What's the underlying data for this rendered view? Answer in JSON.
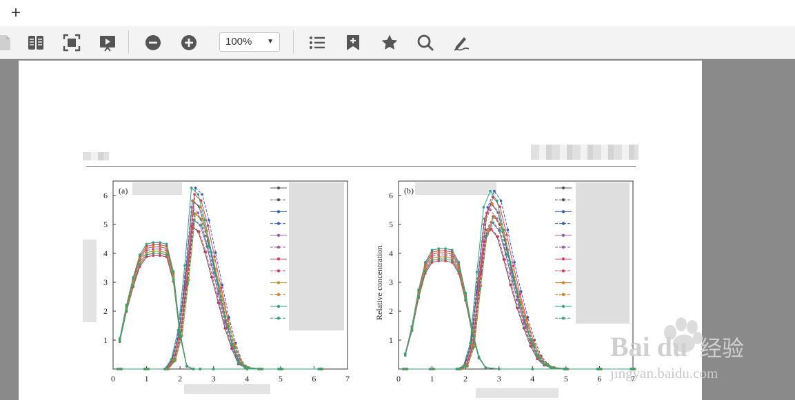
{
  "toolbar": {
    "zoom_value": "100%",
    "icons": [
      "new-tab-icon",
      "document-icon",
      "two-page-icon",
      "fit-page-icon",
      "presentation-icon",
      "zoom-out-icon",
      "zoom-in-icon",
      "outline-icon",
      "bookmark-add-icon",
      "favorite-icon",
      "search-icon",
      "annotate-icon"
    ]
  },
  "page": {
    "panel_a_label": "(a)",
    "panel_b_label": "(b)",
    "ylabel_b": "Relative concentration"
  },
  "chart_data": [
    {
      "type": "line",
      "title": "(a)",
      "xlim": [
        0,
        7
      ],
      "ylim": [
        0,
        6.5
      ],
      "xticks": [
        0,
        1,
        2,
        3,
        4,
        5,
        6,
        7
      ],
      "yticks": [
        1,
        2,
        3,
        4,
        5,
        6
      ],
      "series_count": 12,
      "colors": [
        "#555555",
        "#555555",
        "#2f5fbf",
        "#2f5fbf",
        "#9b59b6",
        "#9b59b6",
        "#e8385a",
        "#e8385a",
        "#c8961e",
        "#e07a1f",
        "#2aa876",
        "#2aa876"
      ],
      "first_peak": {
        "x": [
          0.2,
          0.4,
          0.6,
          0.8,
          1.0,
          1.2,
          1.4,
          1.6,
          1.8,
          2.0,
          2.2,
          2.4,
          2.6,
          3.0,
          4.0,
          5.0,
          6.2
        ],
        "y": [
          1.0,
          2.1,
          3.0,
          3.75,
          4.1,
          4.15,
          4.15,
          4.1,
          3.2,
          1.2,
          0.1,
          0,
          0,
          0,
          0,
          0,
          0
        ]
      },
      "second_peak": {
        "x": [
          0.2,
          1.0,
          1.6,
          1.8,
          2.0,
          2.2,
          2.4,
          2.6,
          2.8,
          3.0,
          3.2,
          3.4,
          3.6,
          3.8,
          4.0,
          4.4,
          5.0,
          6.2
        ],
        "y": [
          0,
          0,
          0,
          0.3,
          1.2,
          3.2,
          5.6,
          5.4,
          4.6,
          3.6,
          2.6,
          1.6,
          0.8,
          0.2,
          0.05,
          0,
          0,
          0
        ]
      }
    },
    {
      "type": "line",
      "title": "(b)",
      "ylabel": "Relative concentration",
      "xlim": [
        0,
        7
      ],
      "ylim": [
        0,
        6.5
      ],
      "xticks": [
        0,
        1,
        2,
        3,
        4,
        5,
        6,
        7
      ],
      "yticks": [
        1,
        2,
        3,
        4,
        5,
        6
      ],
      "series_count": 12,
      "colors": [
        "#555555",
        "#555555",
        "#2f5fbf",
        "#2f5fbf",
        "#9b59b6",
        "#9b59b6",
        "#e8385a",
        "#e8385a",
        "#e07a1f",
        "#e07a1f",
        "#2aa876",
        "#2aa876"
      ],
      "first_peak": {
        "x": [
          0.2,
          0.4,
          0.6,
          0.8,
          1.0,
          1.2,
          1.4,
          1.6,
          1.8,
          2.0,
          2.2,
          2.4,
          2.6,
          3.0,
          4.0,
          5.0,
          6.0,
          7.0
        ],
        "y": [
          0.5,
          1.4,
          2.6,
          3.5,
          3.9,
          3.95,
          3.95,
          3.9,
          3.5,
          2.5,
          1.3,
          0.4,
          0.05,
          0,
          0,
          0,
          0,
          0
        ]
      },
      "second_peak": {
        "x": [
          0.2,
          1.0,
          1.8,
          2.0,
          2.2,
          2.4,
          2.6,
          2.8,
          3.0,
          3.2,
          3.4,
          3.6,
          3.8,
          4.0,
          4.2,
          4.4,
          4.6,
          5.0,
          6.0,
          7.0
        ],
        "y": [
          0,
          0,
          0,
          0.1,
          0.8,
          3.0,
          5.0,
          5.5,
          5.2,
          4.3,
          3.3,
          2.4,
          1.6,
          0.9,
          0.4,
          0.15,
          0.05,
          0,
          0,
          0
        ]
      }
    }
  ],
  "watermark": {
    "brand": "Bai du",
    "cn": "经验",
    "url": "jingyan.baidu.com"
  }
}
